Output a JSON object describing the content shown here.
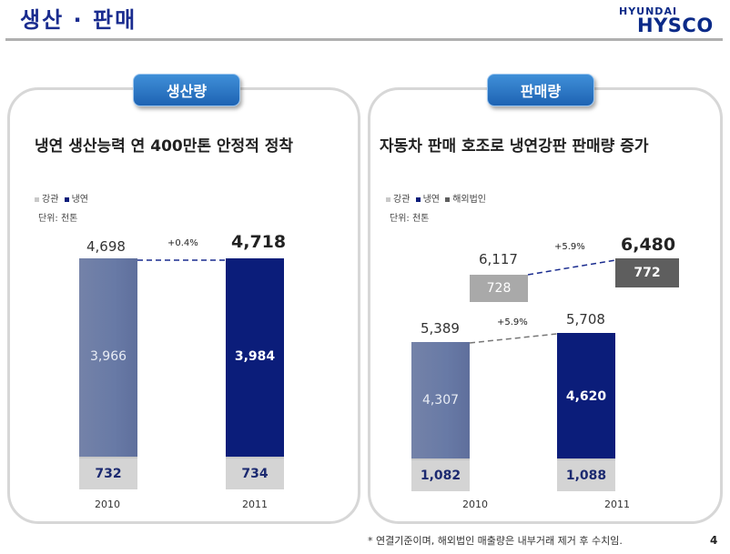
{
  "header": {
    "title": "생산 · 판매",
    "logo_top": "HYUNDAI",
    "logo_main": "HYSCO"
  },
  "colors": {
    "accent": "#1a2c8f",
    "hot_rolled": "#6879a6",
    "cold_rolled": "#0b1d7a",
    "overseas": "#5e5e5e",
    "base": "#d4d4d4"
  },
  "left": {
    "pill": "생산량",
    "headline": "냉연 생산능력 연 400만톤 안정적 정착",
    "legend": [
      "강관",
      "냉연"
    ],
    "unit": "단위: 천톤",
    "pct": "+0.4%",
    "years": [
      "2010",
      "2011"
    ],
    "totals": [
      "4,698",
      "4,718"
    ],
    "cold": [
      "3,966",
      "3,984"
    ],
    "pipe": [
      "732",
      "734"
    ]
  },
  "right": {
    "pill": "판매량",
    "headline": "자동차 판매 호조로 냉연강판 판매량 증가",
    "legend": [
      "강관",
      "냉연",
      "해외법인"
    ],
    "unit": "단위: 천톤",
    "pct_top": "+5.9%",
    "pct_mid": "+5.9%",
    "years": [
      "2010",
      "2011"
    ],
    "grand_totals": [
      "6,117",
      "6,480"
    ],
    "overseas": [
      "728",
      "772"
    ],
    "domestic_totals": [
      "5,389",
      "5,708"
    ],
    "cold": [
      "4,307",
      "4,620"
    ],
    "pipe": [
      "1,082",
      "1,088"
    ]
  },
  "chart_data": [
    {
      "type": "bar",
      "title": "냉연 생산능력 연 400만톤 안정적 정착",
      "categories": [
        "2010",
        "2011"
      ],
      "series": [
        {
          "name": "강관",
          "values": [
            732,
            734
          ]
        },
        {
          "name": "냉연",
          "values": [
            3966,
            3984
          ]
        }
      ],
      "totals": [
        4698,
        4718
      ]
    },
    {
      "type": "bar",
      "title": "자동차 판매 호조로 냉연강판 판매량 증가",
      "categories": [
        "2010",
        "2011"
      ],
      "series": [
        {
          "name": "강관",
          "values": [
            1082,
            1088
          ]
        },
        {
          "name": "냉연",
          "values": [
            4307,
            4620
          ]
        },
        {
          "name": "해외법인",
          "values": [
            728,
            772
          ]
        }
      ],
      "totals": [
        6117,
        6480
      ]
    }
  ],
  "footer": {
    "note": "* 연결기준이며, 해외법인 매출량은 내부거래 제거 후 수치임.",
    "page": "4"
  }
}
